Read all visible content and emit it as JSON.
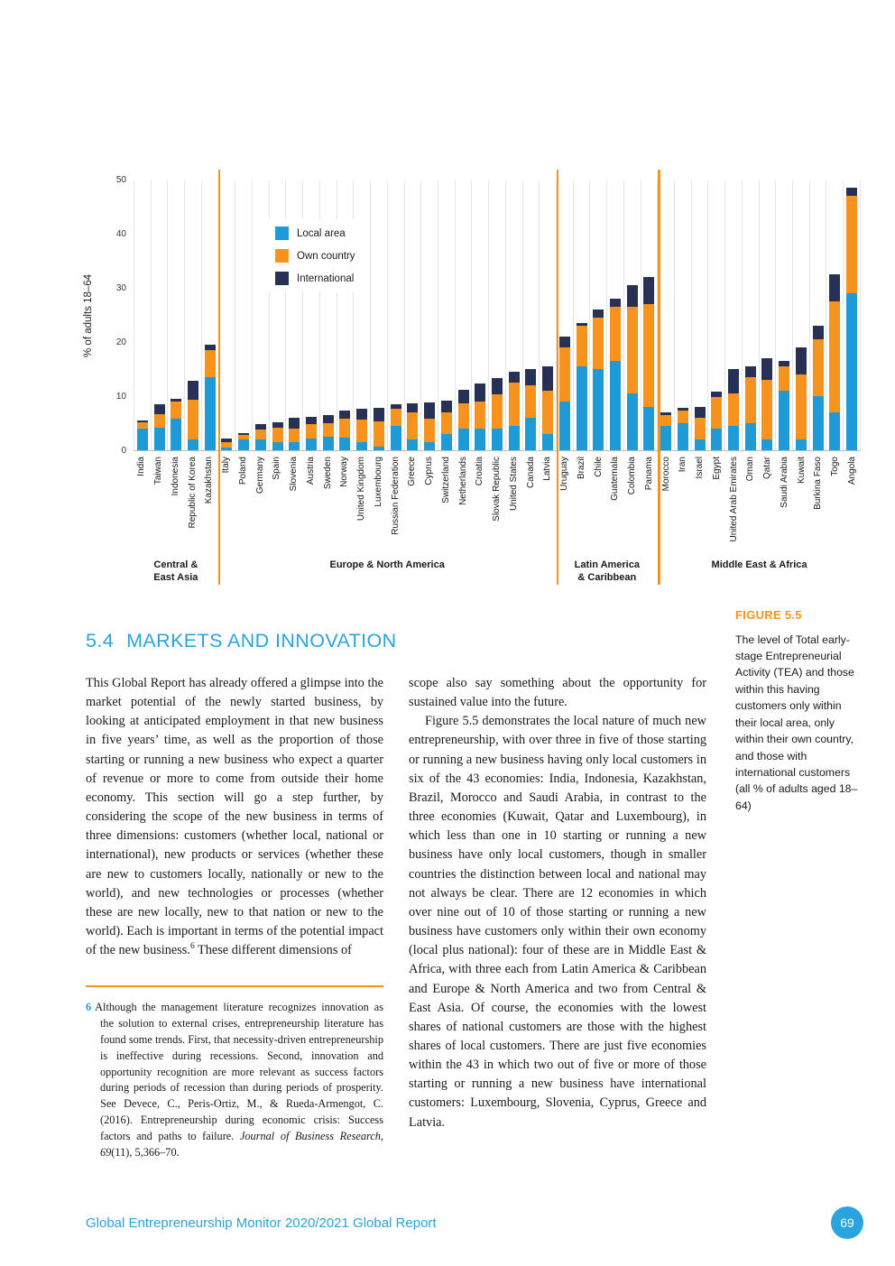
{
  "colors": {
    "accent_blue": "#2ba3dc",
    "accent_orange": "#f6921e",
    "bar_blue": "#1e9bd7",
    "bar_orange": "#f6921e",
    "bar_navy": "#273156",
    "text": "#1a1a1a"
  },
  "chart_data": {
    "type": "bar",
    "stacked": true,
    "ylabel": "% of adults 18–64",
    "ylim": [
      0,
      50
    ],
    "yticks": [
      0,
      10,
      20,
      30,
      40,
      50
    ],
    "grid": "vertical-light",
    "legend_position": "upper-left-inside",
    "categories": [
      "India",
      "Taiwan",
      "Indonesia",
      "Republic of Korea",
      "Kazakhstan",
      "Italy",
      "Poland",
      "Germany",
      "Spain",
      "Slovenia",
      "Austria",
      "Sweden",
      "Norway",
      "United Kingdom",
      "Luxembourg",
      "Russian Federation",
      "Greece",
      "Cyprus",
      "Switzerland",
      "Netherlands",
      "Croatia",
      "Slovak Republic",
      "United States",
      "Canada",
      "Latvia",
      "Uruguay",
      "Brazil",
      "Chile",
      "Guatemala",
      "Colombia",
      "Panama",
      "Morocco",
      "Iran",
      "Israel",
      "Egypt",
      "United Arab Emirates",
      "Oman",
      "Qatar",
      "Saudi Arabia",
      "Kuwait",
      "Burkina Faso",
      "Togo",
      "Angola"
    ],
    "series": [
      {
        "name": "Local area",
        "color": "#1e9bd7",
        "values": [
          4.0,
          4.2,
          5.8,
          2.0,
          13.5,
          0.5,
          2.0,
          2.0,
          1.5,
          1.5,
          2.2,
          2.5,
          2.3,
          1.5,
          0.7,
          4.5,
          2.0,
          1.5,
          3.0,
          4.0,
          4.0,
          4.0,
          4.5,
          6.0,
          3.0,
          9.0,
          15.5,
          15.0,
          16.5,
          10.5,
          8.0,
          4.5,
          5.0,
          2.0,
          4.0,
          4.5,
          5.0,
          2.0,
          11.0,
          2.0,
          10.0,
          7.0,
          29.0
        ]
      },
      {
        "name": "Own country",
        "color": "#f6921e",
        "values": [
          1.2,
          2.5,
          3.2,
          7.3,
          5.0,
          1.0,
          0.8,
          1.8,
          2.6,
          2.5,
          2.6,
          2.5,
          3.5,
          4.2,
          4.6,
          3.2,
          5.0,
          4.3,
          4.0,
          4.7,
          5.0,
          6.3,
          8.0,
          6.0,
          8.0,
          10.0,
          7.5,
          9.5,
          10.0,
          16.0,
          19.0,
          2.0,
          2.3,
          4.0,
          5.8,
          6.0,
          8.5,
          11.0,
          4.5,
          12.0,
          10.5,
          20.5,
          18.0
        ]
      },
      {
        "name": "International",
        "color": "#273156",
        "values": [
          0.3,
          1.8,
          0.5,
          3.5,
          1.0,
          0.6,
          0.4,
          1.0,
          1.1,
          2.0,
          1.4,
          1.5,
          1.5,
          2.0,
          2.5,
          0.8,
          1.7,
          3.0,
          2.2,
          2.5,
          3.3,
          3.0,
          2.0,
          3.0,
          4.5,
          2.0,
          0.5,
          1.5,
          1.5,
          4.0,
          5.0,
          0.5,
          0.5,
          2.0,
          1.0,
          4.5,
          2.0,
          4.0,
          1.0,
          5.0,
          2.5,
          5.0,
          1.5
        ]
      }
    ],
    "regions": [
      {
        "label": "Central &\nEast Asia",
        "count": 5
      },
      {
        "label": "Europe & North America",
        "count": 20
      },
      {
        "label": "Latin America\n& Caribbean",
        "count": 6
      },
      {
        "label": "Middle East & Africa",
        "count": 12
      }
    ],
    "separator_color": "#f6921e"
  },
  "figure_caption": {
    "label": "FIGURE 5.5",
    "text": "The level of Total early-stage Entrepreneurial Activity (TEA) and those within this having customers only within their local area, only within their own country, and those with international customers (all % of adults aged 18–64)"
  },
  "section": {
    "number": "5.4",
    "title": "MARKETS AND INNOVATION",
    "left": {
      "p1": "This Global Report has already offered a glimpse into the market potential of the newly started business, by looking at anticipated employment in that new business in five years’ time, as well as the proportion of those starting or running a new business who expect a quarter of revenue or more to come from outside their home economy. This section will go a step further, by considering the scope of the new business in terms of three dimensions: customers (whether local, national or international), new products or services (whether these are new to customers locally, nationally or new to the world), and new technologies or processes (whether these are new locally, new to that nation or new to the world). Each is important in terms of the potential impact of the new business.",
      "footnote_ref": "6",
      "p1_cont": " These different dimensions of"
    },
    "right": {
      "p1": "scope also say something about the opportunity for sustained value into the future.",
      "p2": "Figure 5.5 demonstrates the local nature of much new entrepreneurship, with over three in five of those starting or running a new business having only local customers in six of the 43 economies: India, Indonesia, Kazakhstan, Brazil, Morocco and Saudi Arabia, in contrast to the three economies (Kuwait, Qatar and Luxembourg), in which less than one in 10 starting or running a new business have only local customers, though in smaller countries the distinction between local and national may not always be clear. There are 12 economies in which over nine out of 10 of those starting or running a new business have customers only within their own economy (local plus national): four of these are in Middle East & Africa, with three each from Latin America & Caribbean and Europe & North America and two from Central & East Asia. Of course, the economies with the lowest shares of national customers are those with the highest shares of local customers. There are just five economies within the 43 in which two out of five or more of those starting or running a new business have international customers: Luxembourg, Slovenia, Cyprus, Greece and Latvia."
    }
  },
  "footnote": {
    "marker": "6",
    "body": "Although the management literature recognizes innovation as the solution to external crises, entrepreneurship literature has found some trends. First, that necessity-driven entrepreneurship is ineffective during recessions. Second, innovation and opportunity recognition are more relevant as success factors during periods of recession than during periods of prosperity. See Devece, C., Peris-Ortiz, M., & Rueda-Armengot, C. (2016). Entrepreneurship during economic crisis: Success factors and paths to failure. ",
    "journal": "Journal of Business Research, 69",
    "tail": "(11), 5,366–70."
  },
  "footer": {
    "text": "Global Entrepreneurship Monitor 2020/2021 Global Report",
    "page": "69"
  }
}
